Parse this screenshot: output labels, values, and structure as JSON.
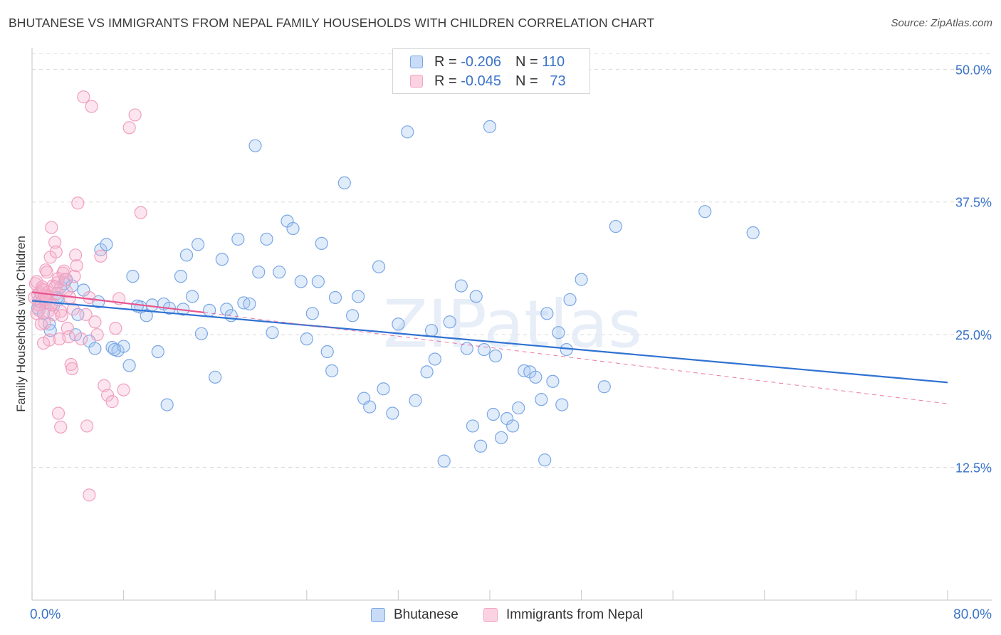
{
  "title": "BHUTANESE VS IMMIGRANTS FROM NEPAL FAMILY HOUSEHOLDS WITH CHILDREN CORRELATION CHART",
  "source": "Source: ZipAtlas.com",
  "watermark": "ZIPatlas",
  "legend_top": {
    "rows": [
      {
        "r_label": "R =",
        "r_value": "-0.206",
        "n_label": "N =",
        "n_value": "110"
      },
      {
        "r_label": "R =",
        "r_value": "-0.045",
        "n_label": "N =",
        "n_value": "73"
      }
    ]
  },
  "legend_bottom": [
    "Bhutanese",
    "Immigrants from Nepal"
  ],
  "chart_data": {
    "type": "scatter",
    "title": "BHUTANESE VS IMMIGRANTS FROM NEPAL FAMILY HOUSEHOLDS WITH CHILDREN CORRELATION CHART",
    "xlabel": "",
    "ylabel": "Family Households with Children",
    "xlim": [
      0,
      80
    ],
    "ylim": [
      0,
      52
    ],
    "x_tick_labels": [
      "0.0%",
      "80.0%"
    ],
    "y_ticks": [
      12.5,
      25.0,
      37.5,
      50.0
    ],
    "y_tick_labels": [
      "12.5%",
      "25.0%",
      "37.5%",
      "50.0%"
    ],
    "grid": true,
    "series": [
      {
        "name": "Bhutanese",
        "color": "#7aa7e6",
        "trend": {
          "x": [
            0,
            80
          ],
          "y": [
            28.2,
            20.5
          ],
          "color": "#2f72d2"
        },
        "points": [
          [
            0.5,
            27.5
          ],
          [
            0.6,
            28.2
          ],
          [
            0.8,
            28.8
          ],
          [
            1.0,
            27.0
          ],
          [
            1.2,
            28.0
          ],
          [
            1.5,
            26.0
          ],
          [
            1.6,
            25.4
          ],
          [
            1.9,
            27.8
          ],
          [
            2.3,
            28.3
          ],
          [
            2.5,
            29.5
          ],
          [
            2.8,
            29.8
          ],
          [
            3.0,
            30.2
          ],
          [
            3.5,
            29.6
          ],
          [
            4.0,
            26.9
          ],
          [
            4.5,
            29.2
          ],
          [
            5.0,
            24.4
          ],
          [
            5.5,
            23.7
          ],
          [
            5.8,
            28.1
          ],
          [
            6.0,
            33.0
          ],
          [
            6.5,
            33.5
          ],
          [
            7.0,
            23.8
          ],
          [
            7.5,
            23.5
          ],
          [
            8.0,
            23.9
          ],
          [
            8.5,
            22.1
          ],
          [
            8.8,
            30.5
          ],
          [
            9.5,
            27.6
          ],
          [
            10.0,
            26.8
          ],
          [
            10.5,
            27.8
          ],
          [
            11.0,
            23.4
          ],
          [
            11.5,
            27.9
          ],
          [
            11.8,
            18.4
          ],
          [
            12.0,
            27.5
          ],
          [
            13.0,
            30.5
          ],
          [
            13.5,
            32.5
          ],
          [
            14.0,
            28.6
          ],
          [
            14.5,
            33.5
          ],
          [
            14.8,
            25.1
          ],
          [
            15.5,
            27.3
          ],
          [
            16.0,
            21.0
          ],
          [
            16.6,
            32.1
          ],
          [
            17.0,
            27.4
          ],
          [
            17.4,
            26.8
          ],
          [
            18.0,
            34.0
          ],
          [
            18.5,
            28.0
          ],
          [
            19.0,
            27.9
          ],
          [
            19.5,
            42.8
          ],
          [
            19.8,
            30.9
          ],
          [
            20.5,
            34.0
          ],
          [
            21.0,
            25.2
          ],
          [
            21.6,
            30.9
          ],
          [
            22.3,
            35.7
          ],
          [
            22.8,
            35.0
          ],
          [
            23.5,
            30.0
          ],
          [
            24.0,
            24.6
          ],
          [
            24.5,
            27.0
          ],
          [
            25.0,
            30.0
          ],
          [
            25.3,
            33.6
          ],
          [
            25.8,
            23.4
          ],
          [
            26.2,
            21.6
          ],
          [
            26.5,
            28.5
          ],
          [
            27.3,
            39.3
          ],
          [
            28.0,
            26.8
          ],
          [
            28.5,
            28.6
          ],
          [
            29.0,
            19.0
          ],
          [
            29.5,
            18.2
          ],
          [
            30.3,
            31.4
          ],
          [
            30.7,
            19.9
          ],
          [
            31.5,
            17.6
          ],
          [
            32.0,
            26.0
          ],
          [
            32.8,
            44.1
          ],
          [
            33.5,
            18.8
          ],
          [
            34.5,
            21.5
          ],
          [
            34.9,
            25.4
          ],
          [
            35.2,
            22.7
          ],
          [
            36.0,
            13.1
          ],
          [
            36.5,
            26.2
          ],
          [
            37.5,
            29.6
          ],
          [
            38.0,
            23.7
          ],
          [
            38.5,
            16.4
          ],
          [
            38.8,
            28.6
          ],
          [
            39.2,
            14.5
          ],
          [
            39.5,
            23.6
          ],
          [
            40.0,
            44.6
          ],
          [
            40.3,
            17.5
          ],
          [
            40.5,
            23.0
          ],
          [
            41.0,
            15.3
          ],
          [
            41.5,
            17.1
          ],
          [
            42.0,
            16.4
          ],
          [
            42.5,
            18.1
          ],
          [
            43.0,
            21.6
          ],
          [
            43.5,
            21.5
          ],
          [
            44.0,
            21.0
          ],
          [
            44.5,
            18.9
          ],
          [
            44.8,
            13.2
          ],
          [
            45.0,
            27.0
          ],
          [
            45.5,
            20.6
          ],
          [
            46.0,
            25.2
          ],
          [
            46.3,
            18.4
          ],
          [
            46.7,
            23.6
          ],
          [
            47.0,
            28.3
          ],
          [
            48.0,
            30.2
          ],
          [
            50.0,
            20.1
          ],
          [
            51.0,
            35.2
          ],
          [
            58.8,
            36.6
          ],
          [
            63.0,
            34.6
          ],
          [
            2.2,
            28.5
          ],
          [
            3.8,
            25.0
          ],
          [
            7.2,
            23.6
          ],
          [
            9.2,
            27.7
          ],
          [
            13.2,
            27.4
          ]
        ]
      },
      {
        "name": "Immigrants from Nepal",
        "color": "#f3a6c3",
        "trend": {
          "x": [
            0,
            15
          ],
          "y": [
            29.0,
            27.1
          ],
          "color": "#e8568f"
        },
        "trend_dashed": {
          "x": [
            15,
            80
          ],
          "y": [
            27.1,
            18.5
          ],
          "color": "#e8568f"
        },
        "points": [
          [
            0.2,
            28.5
          ],
          [
            0.3,
            29.8
          ],
          [
            0.4,
            27.0
          ],
          [
            0.5,
            28.8
          ],
          [
            0.6,
            27.8
          ],
          [
            0.7,
            29.0
          ],
          [
            0.8,
            28.1
          ],
          [
            0.9,
            29.3
          ],
          [
            1.0,
            24.2
          ],
          [
            1.1,
            26.1
          ],
          [
            1.2,
            31.1
          ],
          [
            1.3,
            28.6
          ],
          [
            1.4,
            27.2
          ],
          [
            1.5,
            28.0
          ],
          [
            1.6,
            32.3
          ],
          [
            1.7,
            35.1
          ],
          [
            1.8,
            29.6
          ],
          [
            1.9,
            26.9
          ],
          [
            2.0,
            33.7
          ],
          [
            2.1,
            32.8
          ],
          [
            2.2,
            29.9
          ],
          [
            2.3,
            30.3
          ],
          [
            2.4,
            24.6
          ],
          [
            2.5,
            27.2
          ],
          [
            2.6,
            26.8
          ],
          [
            2.7,
            30.8
          ],
          [
            2.8,
            31.0
          ],
          [
            2.9,
            30.2
          ],
          [
            3.0,
            29.1
          ],
          [
            3.1,
            25.6
          ],
          [
            3.2,
            24.8
          ],
          [
            3.3,
            28.5
          ],
          [
            3.4,
            22.2
          ],
          [
            3.5,
            21.8
          ],
          [
            3.6,
            27.4
          ],
          [
            3.7,
            30.5
          ],
          [
            3.8,
            32.5
          ],
          [
            3.9,
            31.5
          ],
          [
            4.0,
            37.4
          ],
          [
            4.3,
            24.6
          ],
          [
            4.5,
            47.4
          ],
          [
            4.7,
            26.9
          ],
          [
            5.0,
            28.5
          ],
          [
            5.2,
            46.5
          ],
          [
            5.5,
            26.2
          ],
          [
            5.7,
            25.0
          ],
          [
            6.0,
            32.4
          ],
          [
            6.3,
            20.2
          ],
          [
            6.6,
            19.3
          ],
          [
            7.0,
            18.7
          ],
          [
            7.3,
            25.6
          ],
          [
            7.6,
            28.4
          ],
          [
            8.0,
            19.8
          ],
          [
            8.5,
            44.5
          ],
          [
            9.0,
            45.7
          ],
          [
            9.5,
            36.5
          ],
          [
            2.3,
            17.6
          ],
          [
            2.5,
            16.3
          ],
          [
            4.8,
            16.4
          ],
          [
            5.0,
            9.9
          ],
          [
            0.4,
            30.0
          ],
          [
            0.6,
            27.3
          ],
          [
            0.8,
            26.0
          ],
          [
            1.0,
            29.2
          ],
          [
            1.2,
            28.3
          ],
          [
            1.3,
            30.9
          ],
          [
            1.4,
            29.0
          ],
          [
            1.5,
            24.5
          ],
          [
            1.7,
            27.8
          ],
          [
            2.0,
            29.5
          ],
          [
            2.2,
            28.9
          ],
          [
            1.1,
            28.7
          ],
          [
            0.9,
            29.5
          ]
        ]
      }
    ]
  }
}
